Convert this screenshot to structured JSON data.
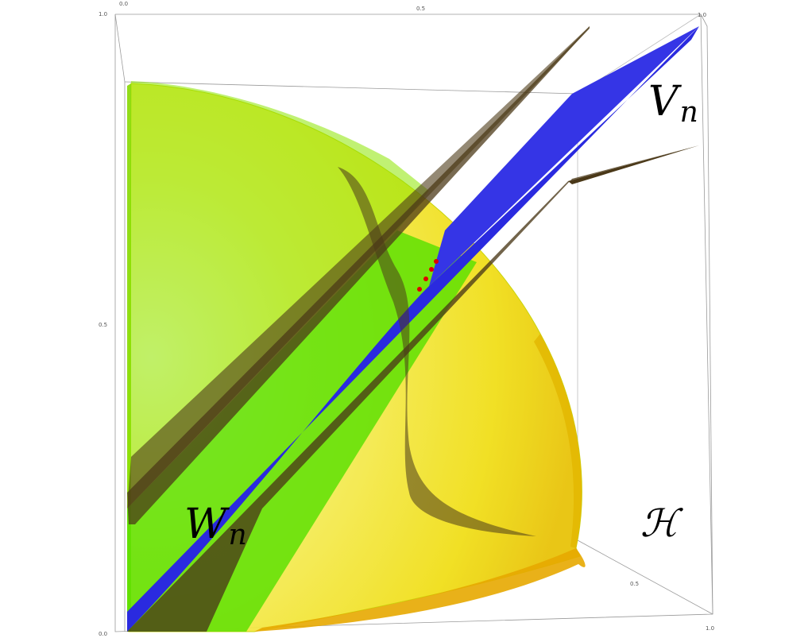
{
  "figure": {
    "labels": {
      "v_label": "V",
      "v_sub": "n",
      "w_label": "W",
      "w_sub": "n",
      "h_label": "ℋ"
    },
    "ticks": {
      "top_left": "0.0",
      "top_mid": "0.5",
      "top_right": "1.0",
      "left_top": "1.0",
      "left_mid": "0.5",
      "left_bottom": "0.0",
      "right_mid": "0.5",
      "right_bottom": "1.0"
    },
    "colors": {
      "sphere_light": "#fffde0",
      "sphere_yellow": "#f2e21c",
      "sphere_edge": "#d9a400",
      "green_band": "#5ee000",
      "blue_band": "#2727e0",
      "brown_band": "#4b3a1c",
      "red_points": "#e00000"
    }
  }
}
